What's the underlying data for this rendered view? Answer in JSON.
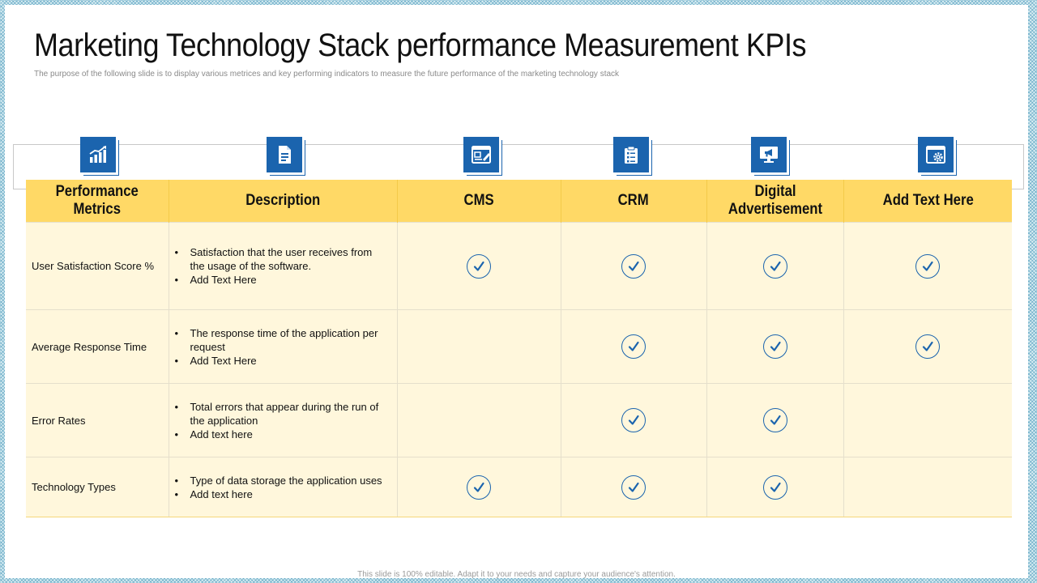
{
  "title": "Marketing Technology Stack performance Measurement KPIs",
  "subtitle": "The purpose of the following slide is to display various metrices and key performing indicators to measure the future performance of the marketing technology stack",
  "icons": [
    "bar-chart-icon",
    "document-icon",
    "cms-window-icon",
    "crm-clipboard-icon",
    "monitor-megaphone-icon",
    "browser-settings-icon"
  ],
  "table": {
    "headers": [
      "Performance Metrics",
      "Description",
      "CMS",
      "CRM",
      "Digital Advertisement",
      "Add Text Here"
    ],
    "rows": [
      {
        "metric": "User Satisfaction Score %",
        "desc": [
          "Satisfaction that the user receives from the usage of the software.",
          "Add Text Here"
        ],
        "checks": [
          true,
          true,
          true,
          true
        ]
      },
      {
        "metric": "Average Response Time",
        "desc": [
          "The response time of the application per request",
          "Add Text Here"
        ],
        "checks": [
          false,
          true,
          true,
          true
        ]
      },
      {
        "metric": "Error Rates",
        "desc": [
          "Total errors that appear during the run of the application",
          "Add text here"
        ],
        "checks": [
          false,
          true,
          true,
          false
        ]
      },
      {
        "metric": "Technology Types",
        "desc": [
          "Type of data storage the application uses",
          "Add text here"
        ],
        "checks": [
          true,
          true,
          true,
          false
        ]
      }
    ]
  },
  "footer": "This slide is 100% editable. Adapt it to your needs and capture your audience's attention.",
  "colors": {
    "header_bg": "#ffd966",
    "row_bg": "#fff7dc",
    "icon_blue": "#1b64ae",
    "check_blue": "#1b64ae"
  }
}
